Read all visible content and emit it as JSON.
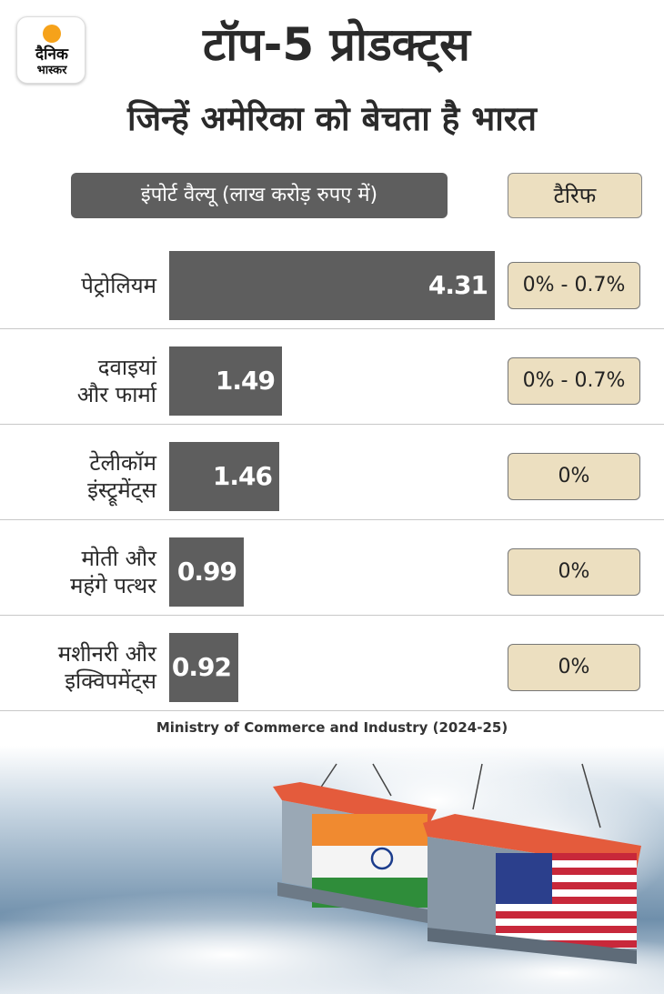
{
  "brand": {
    "line1": "दैनिक",
    "line2": "भास्कर",
    "sun_color": "#f6a21a"
  },
  "title": "टॉप-5 प्रोडक्ट्स",
  "subtitle": "जिन्हें अमेरिका को बेचता है भारत",
  "headers": {
    "import_value": "इंपोर्ट वैल्यू (लाख करोड़ रुपए में)",
    "tariff": "टैरिफ"
  },
  "source": "Ministry of Commerce and Industry (2024-25)",
  "colors": {
    "bar": "#5e5e5e",
    "tariff_box": "#ecdfc0"
  },
  "chart_data": {
    "type": "bar",
    "orientation": "horizontal",
    "categories": [
      [
        "पेट्रोलियम"
      ],
      [
        "दवाइयां",
        "और फार्मा"
      ],
      [
        "टेलीकॉम",
        "इंस्ट्रूमेंट्स"
      ],
      [
        "मोती और",
        "महंगे पत्थर"
      ],
      [
        "मशीनरी और",
        "इक्विपमेंट्स"
      ]
    ],
    "values": [
      4.31,
      1.49,
      1.46,
      0.99,
      0.92
    ],
    "value_labels": [
      "4.31",
      "1.49",
      "1.46",
      "0.99",
      "0.92"
    ],
    "tariffs": [
      "0% - 0.7%",
      "0% - 0.7%",
      "0%",
      "0%",
      "0%"
    ],
    "xlim": [
      0,
      4.31
    ],
    "grid": false,
    "legend": "none"
  }
}
